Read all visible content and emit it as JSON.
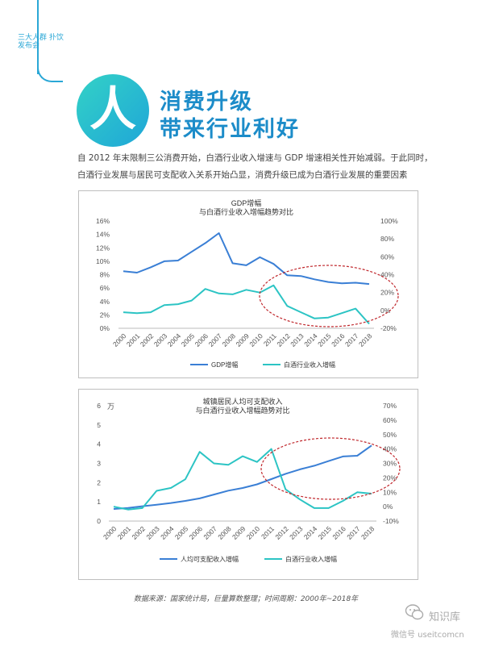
{
  "brand": {
    "vertical_text": "三大人群 扑饮发布会"
  },
  "hero": {
    "glyph": "人",
    "title_line1": "消费升级",
    "title_line2": "带来行业利好"
  },
  "intro": {
    "line1": "自 2012 年末限制三公消费开始，白酒行业收入增速与  GDP  增速相关性开始减弱。于此同时，",
    "line2": "白酒行业发展与居民可支配收入关系开始凸显，消费升级已成为白酒行业发展的重要因素"
  },
  "chart_data": [
    {
      "type": "line",
      "title": "GDP增幅",
      "subtitle": "与白酒行业收入增幅趋势对比",
      "x": [
        "2000",
        "2001",
        "2002",
        "2003",
        "2004",
        "2005",
        "2006",
        "2007",
        "2008",
        "2009",
        "2010",
        "2011",
        "2012",
        "2013",
        "2014",
        "2015",
        "2016",
        "2017",
        "2018"
      ],
      "y_left_ticks": [
        "0%",
        "2%",
        "4%",
        "6%",
        "8%",
        "10%",
        "12%",
        "14%",
        "16%"
      ],
      "y_right_ticks": [
        "-20%",
        "0%",
        "20%",
        "40%",
        "60%",
        "80%",
        "100%"
      ],
      "ylim_left": [
        0,
        16
      ],
      "ylim_right": [
        -20,
        100
      ],
      "series": [
        {
          "name": "GDP增幅",
          "axis": "left",
          "color": "#3a7fd5",
          "values": [
            8.5,
            8.3,
            9.1,
            10.0,
            10.1,
            11.4,
            12.7,
            14.2,
            9.7,
            9.4,
            10.6,
            9.6,
            7.9,
            7.8,
            7.3,
            6.9,
            6.7,
            6.8,
            6.6
          ]
        },
        {
          "name": "白酒行业收入增幅",
          "axis": "right",
          "color": "#2cc4c4",
          "values": [
            -2,
            -3,
            -2,
            6,
            7,
            11,
            24,
            19,
            18,
            23,
            20,
            28,
            5,
            -2,
            -9,
            -8,
            -3,
            2,
            -15
          ]
        }
      ],
      "legend": "bottom",
      "grid": false
    },
    {
      "type": "line",
      "title": "城镇居民人均可支配收入",
      "subtitle": "与白酒行业收入增幅趋势对比",
      "unit_label": "万",
      "x": [
        "2000",
        "2001",
        "2002",
        "2003",
        "2004",
        "2005",
        "2006",
        "2007",
        "2008",
        "2009",
        "2010",
        "2011",
        "2012",
        "2013",
        "2014",
        "2015",
        "2016",
        "2017",
        "2018"
      ],
      "y_left_ticks": [
        "0",
        "1",
        "2",
        "3",
        "4",
        "5",
        "6"
      ],
      "y_right_ticks": [
        "-10%",
        "0%",
        "10%",
        "20%",
        "30%",
        "40%",
        "50%",
        "60%",
        "70%"
      ],
      "ylim_left": [
        0,
        6
      ],
      "ylim_right": [
        -10,
        70
      ],
      "series": [
        {
          "name": "人均可支配收入增幅",
          "axis": "left",
          "color": "#3a7fd5",
          "values": [
            0.63,
            0.68,
            0.77,
            0.85,
            0.94,
            1.05,
            1.18,
            1.38,
            1.58,
            1.72,
            1.91,
            2.18,
            2.46,
            2.69,
            2.88,
            3.12,
            3.36,
            3.4,
            3.93
          ]
        },
        {
          "name": "白酒行业收入增幅",
          "axis": "right",
          "color": "#2cc4c4",
          "values": [
            0,
            -2,
            -1,
            11,
            13,
            19,
            38,
            30,
            29,
            35,
            31,
            40,
            12,
            5,
            -1,
            -1,
            4,
            10,
            9
          ]
        }
      ],
      "legend": "bottom",
      "grid": false
    }
  ],
  "source": "数据来源：国家统计局，巨量算数整理；时间周期：2000年~2018年",
  "watermark": {
    "name": "知识库",
    "account": "微信号 useitcomcn"
  }
}
